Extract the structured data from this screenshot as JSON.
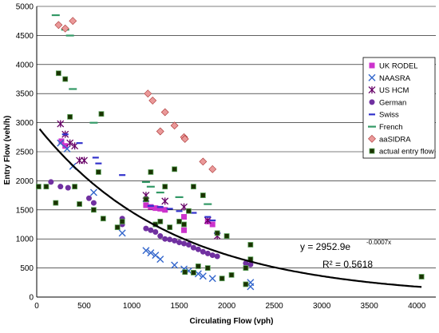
{
  "chart_data": {
    "type": "scatter",
    "title": "",
    "xlabel": "Circulating Flow (vph)",
    "ylabel": "Entry Flow (veh/h)",
    "xlim": [
      0,
      4200
    ],
    "ylim": [
      0,
      5000
    ],
    "xticks": [
      "0",
      "500",
      "1000",
      "1500",
      "2000",
      "2500",
      "3000",
      "3500",
      "4000"
    ],
    "yticks": [
      "0",
      "500",
      "1000",
      "1500",
      "2000",
      "2500",
      "3000",
      "3500",
      "4000",
      "4500",
      "5000"
    ],
    "grid": "horizontal",
    "legend_position": "right",
    "trendline": {
      "a": 2952.9,
      "b": -0.0007,
      "equation": "y = 2952.9e",
      "exponent": "-0.0007x",
      "r2": "R² = 0.5618"
    },
    "series": [
      {
        "name": "UK RODEL",
        "marker": "square",
        "color": "#cc33cc",
        "points": [
          [
            260,
            2680
          ],
          [
            300,
            2600
          ],
          [
            1150,
            1580
          ],
          [
            1200,
            1550
          ],
          [
            1250,
            1530
          ],
          [
            1300,
            1520
          ],
          [
            1350,
            1500
          ],
          [
            1550,
            1380
          ],
          [
            1800,
            1300
          ],
          [
            1850,
            1250
          ],
          [
            1550,
            1150
          ]
        ]
      },
      {
        "name": "NAASRA",
        "marker": "x",
        "color": "#3366cc",
        "points": [
          [
            250,
            2650
          ],
          [
            320,
            2550
          ],
          [
            380,
            2250
          ],
          [
            600,
            1800
          ],
          [
            900,
            1100
          ],
          [
            1150,
            800
          ],
          [
            1200,
            760
          ],
          [
            1250,
            720
          ],
          [
            1300,
            650
          ],
          [
            1450,
            550
          ],
          [
            1550,
            480
          ],
          [
            1600,
            450
          ],
          [
            1700,
            400
          ],
          [
            1750,
            360
          ],
          [
            1850,
            320
          ],
          [
            2250,
            250
          ],
          [
            2250,
            180
          ]
        ]
      },
      {
        "name": "US HCM",
        "marker": "star",
        "color": "#660066",
        "points": [
          [
            250,
            2980
          ],
          [
            300,
            2800
          ],
          [
            350,
            2650
          ],
          [
            400,
            2600
          ],
          [
            450,
            2350
          ],
          [
            500,
            2350
          ],
          [
            1150,
            1750
          ],
          [
            1350,
            1650
          ],
          [
            1550,
            1550
          ],
          [
            1800,
            1320
          ],
          [
            1900,
            1050
          ]
        ]
      },
      {
        "name": "German",
        "marker": "circle",
        "color": "#7030a0",
        "points": [
          [
            150,
            1980
          ],
          [
            250,
            1900
          ],
          [
            330,
            1880
          ],
          [
            550,
            1700
          ],
          [
            600,
            1620
          ],
          [
            900,
            1350
          ],
          [
            900,
            1250
          ],
          [
            1150,
            1180
          ],
          [
            1200,
            1150
          ],
          [
            1250,
            1120
          ],
          [
            1300,
            1050
          ],
          [
            1350,
            1000
          ],
          [
            1400,
            990
          ],
          [
            1450,
            970
          ],
          [
            1500,
            940
          ],
          [
            1550,
            920
          ],
          [
            1600,
            900
          ],
          [
            1650,
            850
          ],
          [
            1700,
            820
          ],
          [
            1750,
            780
          ],
          [
            1800,
            750
          ],
          [
            1850,
            720
          ],
          [
            1900,
            700
          ],
          [
            2200,
            580
          ],
          [
            2250,
            560
          ]
        ]
      },
      {
        "name": "Swiss",
        "marker": "dash",
        "color": "#3333cc",
        "points": [
          [
            300,
            2800
          ],
          [
            450,
            2650
          ],
          [
            620,
            2400
          ],
          [
            650,
            2300
          ],
          [
            900,
            2100
          ],
          [
            1150,
            1650
          ],
          [
            1200,
            1570
          ],
          [
            1300,
            1550
          ],
          [
            1400,
            1520
          ],
          [
            1500,
            1480
          ],
          [
            1650,
            1450
          ],
          [
            1800,
            1380
          ],
          [
            1850,
            1320
          ],
          [
            1900,
            1100
          ]
        ]
      },
      {
        "name": "French",
        "marker": "long-dash",
        "color": "#339966",
        "points": [
          [
            200,
            4850
          ],
          [
            300,
            4600
          ],
          [
            350,
            4500
          ],
          [
            380,
            3580
          ],
          [
            600,
            3000
          ],
          [
            1150,
            1980
          ],
          [
            1200,
            1900
          ],
          [
            1300,
            1800
          ],
          [
            1500,
            1720
          ],
          [
            1800,
            1600
          ]
        ]
      },
      {
        "name": "aaSIDRA",
        "marker": "diamond",
        "color": "#ea9999",
        "points": [
          [
            230,
            4680
          ],
          [
            300,
            4620
          ],
          [
            380,
            4750
          ],
          [
            1170,
            3500
          ],
          [
            1220,
            3380
          ],
          [
            1300,
            2850
          ],
          [
            1450,
            2950
          ],
          [
            1350,
            3180
          ],
          [
            1550,
            2750
          ],
          [
            1560,
            2720
          ],
          [
            1750,
            2330
          ],
          [
            1850,
            2200
          ]
        ]
      },
      {
        "name": "actual entry flow",
        "marker": "square-dark",
        "color": "#1a3300",
        "points": [
          [
            20,
            1900
          ],
          [
            100,
            1900
          ],
          [
            200,
            1620
          ],
          [
            230,
            3850
          ],
          [
            300,
            3750
          ],
          [
            350,
            3100
          ],
          [
            400,
            1900
          ],
          [
            450,
            1600
          ],
          [
            600,
            1500
          ],
          [
            650,
            2150
          ],
          [
            680,
            3150
          ],
          [
            700,
            1350
          ],
          [
            850,
            1200
          ],
          [
            900,
            1300
          ],
          [
            1150,
            1680
          ],
          [
            1200,
            2150
          ],
          [
            1250,
            1250
          ],
          [
            1300,
            1300
          ],
          [
            1350,
            1900
          ],
          [
            1400,
            1200
          ],
          [
            1450,
            2200
          ],
          [
            1500,
            1300
          ],
          [
            1550,
            1250
          ],
          [
            1600,
            1480
          ],
          [
            1650,
            1900
          ],
          [
            1750,
            1750
          ],
          [
            1800,
            500
          ],
          [
            1900,
            1100
          ],
          [
            2000,
            1050
          ],
          [
            2050,
            380
          ],
          [
            2200,
            500
          ],
          [
            2250,
            900
          ],
          [
            2250,
            650
          ],
          [
            4050,
            350
          ],
          [
            1560,
            430
          ],
          [
            1650,
            420
          ],
          [
            1700,
            530
          ],
          [
            2200,
            220
          ],
          [
            1950,
            320
          ]
        ]
      }
    ]
  }
}
